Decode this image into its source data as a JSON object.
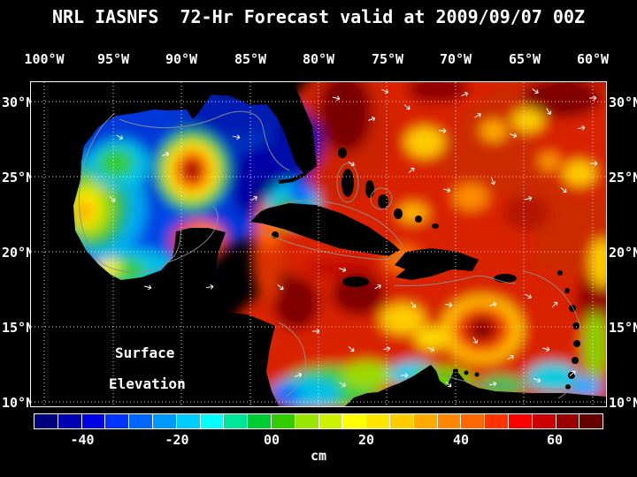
{
  "title": "NRL IASNFS  72-Hr Forecast valid at 2009/09/07 00Z",
  "axes": {
    "lon_labels": [
      "100°W",
      "95°W",
      "90°W",
      "85°W",
      "80°W",
      "75°W",
      "70°W",
      "65°W",
      "60°W"
    ],
    "lat_labels": [
      "30°N",
      "25°N",
      "20°N",
      "15°N",
      "10°N"
    ]
  },
  "annotations": {
    "line1": "Surface",
    "line2": "Elevation"
  },
  "colorbar": {
    "unit": "cm",
    "tick_labels": [
      "-40",
      "-20",
      "00",
      "20",
      "40",
      "60"
    ],
    "tick_values": [
      -40,
      -20,
      0,
      20,
      40,
      60
    ],
    "min_cm": -50,
    "max_cm": 70,
    "segment_step_cm": 5,
    "colors": [
      "#000080",
      "#0000b3",
      "#0000e6",
      "#0033ff",
      "#0066ff",
      "#0099ff",
      "#00ccff",
      "#00ffff",
      "#00e699",
      "#00cc33",
      "#33cc00",
      "#99e600",
      "#ccf200",
      "#ffff00",
      "#ffe600",
      "#ffcc00",
      "#ffaa00",
      "#ff8800",
      "#ff6600",
      "#ff3300",
      "#ff0000",
      "#cc0000",
      "#990000",
      "#660000"
    ]
  },
  "chart_data": {
    "type": "heatmap",
    "title": "NRL IASNFS  72-Hr Forecast valid at 2009/09/07 00Z",
    "field": "Surface Elevation (cm)",
    "x_lon_degW": [
      100,
      95,
      90,
      85,
      80,
      75,
      70,
      65,
      60
    ],
    "y_lat_degN": [
      30,
      25,
      20,
      15,
      10
    ],
    "values": [
      [
        null,
        null,
        null,
        -20,
        65,
        50,
        45,
        40,
        50
      ],
      [
        null,
        -5,
        10,
        -35,
        0,
        50,
        45,
        35,
        45
      ],
      [
        null,
        10,
        40,
        45,
        50,
        40,
        40,
        35,
        30
      ],
      [
        null,
        null,
        null,
        60,
        50,
        30,
        60,
        35,
        15
      ],
      [
        null,
        null,
        null,
        -5,
        -15,
        5,
        null,
        null,
        5
      ]
    ],
    "value_range_cm": [
      -50,
      70
    ],
    "null_means": "land or no data (black)",
    "grid": "dotted white graticule every 5 degrees",
    "overlays": [
      "white current-vector arrows",
      "gray bathymetry contours",
      "black land mask"
    ],
    "legend_position": "bottom colorbar"
  }
}
